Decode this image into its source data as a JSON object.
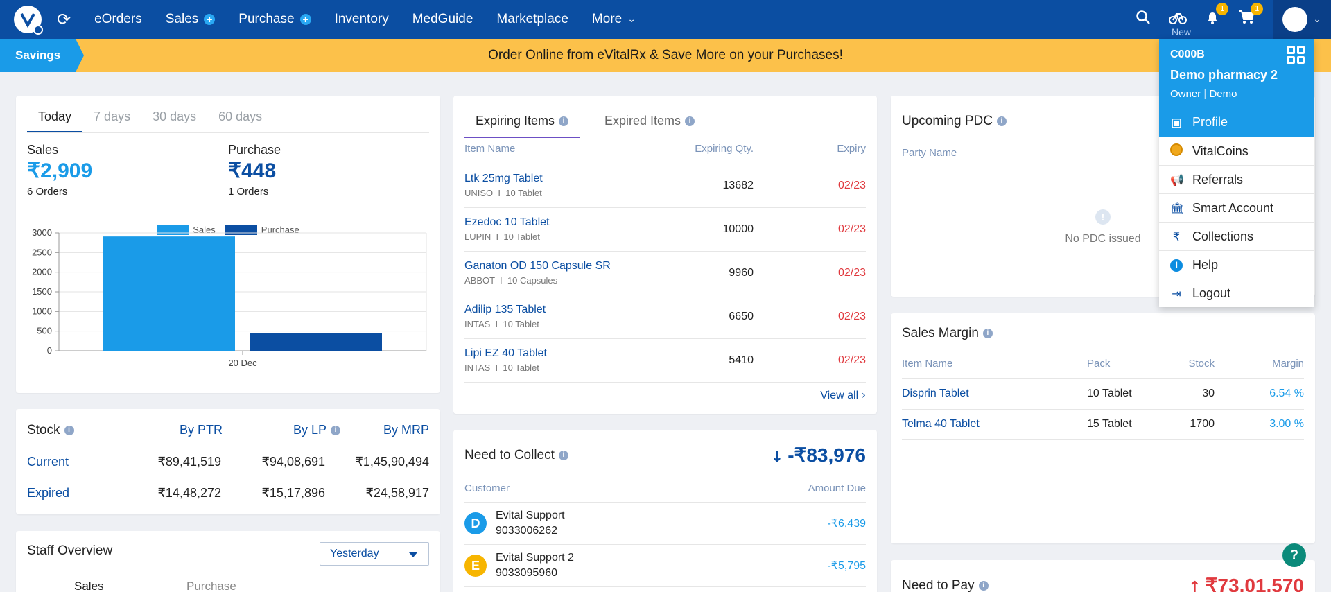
{
  "nav": {
    "items": [
      {
        "label": "eOrders"
      },
      {
        "label": "Sales"
      },
      {
        "label": "Purchase"
      },
      {
        "label": "Inventory"
      },
      {
        "label": "MedGuide"
      },
      {
        "label": "Marketplace"
      },
      {
        "label": "More"
      }
    ],
    "new_label": "New",
    "notif_count": "1",
    "cart_count": "1"
  },
  "banner": {
    "savings": "Savings",
    "text": "Order Online from eVitalRx & Save More on your Purchases!"
  },
  "sales_card": {
    "tabs": [
      "Today",
      "7 days",
      "30 days",
      "60 days"
    ],
    "sales_label": "Sales",
    "sales_value": "₹2,909",
    "sales_orders": "6 Orders",
    "purchase_label": "Purchase",
    "purchase_value": "₹448",
    "purchase_orders": "1 Orders"
  },
  "chart_data": {
    "type": "bar",
    "categories": [
      "20 Dec"
    ],
    "series": [
      {
        "name": "Sales",
        "values": [
          2909
        ],
        "color": "#1a9be8"
      },
      {
        "name": "Purchase",
        "values": [
          448
        ],
        "color": "#0b4ea2"
      }
    ],
    "yticks": [
      "3000",
      "2500",
      "2000",
      "1500",
      "1000",
      "500",
      "0"
    ],
    "ylim": [
      0,
      3000
    ],
    "grid": true,
    "legend_position": "top-center"
  },
  "stock": {
    "title": "Stock",
    "cols": [
      "By PTR",
      "By LP",
      "By MRP"
    ],
    "rows": [
      {
        "label": "Current",
        "values": [
          "₹89,41,519",
          "₹94,08,691",
          "₹1,45,90,494"
        ]
      },
      {
        "label": "Expired",
        "values": [
          "₹14,48,272",
          "₹15,17,896",
          "₹24,58,917"
        ]
      }
    ]
  },
  "staff": {
    "title": "Staff Overview",
    "select": "Yesterday",
    "col1": "Sales",
    "col2": "Purchase"
  },
  "expiring": {
    "tab_active": "Expiring Items",
    "tab_other": "Expired Items",
    "headers": [
      "Item Name",
      "Expiring Qty.",
      "Expiry"
    ],
    "rows": [
      {
        "name": "Ltk 25mg Tablet",
        "sub": "UNISO  I  10 Tablet",
        "qty": "13682",
        "expiry": "02/23"
      },
      {
        "name": "Ezedoc 10 Tablet",
        "sub": "LUPIN  I  10 Tablet",
        "qty": "10000",
        "expiry": "02/23"
      },
      {
        "name": "Ganaton OD 150 Capsule SR",
        "sub": "ABBOT  I  10 Capsules",
        "qty": "9960",
        "expiry": "02/23"
      },
      {
        "name": "Adilip 135 Tablet",
        "sub": "INTAS  I  10 Tablet",
        "qty": "6650",
        "expiry": "02/23"
      },
      {
        "name": "Lipi EZ 40 Tablet",
        "sub": "INTAS  I  10 Tablet",
        "qty": "5410",
        "expiry": "02/23"
      }
    ],
    "view_all": "View all"
  },
  "collect": {
    "title": "Need to Collect",
    "total": "-₹83,976",
    "headers": [
      "Customer",
      "Amount Due"
    ],
    "rows": [
      {
        "initial": "D",
        "name": "Evital Support",
        "phone": "9033006262",
        "amount": "-₹6,439",
        "color": "#1a9be8"
      },
      {
        "initial": "E",
        "name": "Evital Support 2",
        "phone": "9033095960",
        "amount": "-₹5,795",
        "color": "#f7b500"
      }
    ]
  },
  "pdc": {
    "title": "Upcoming PDC",
    "header": "Party Name",
    "empty": "No PDC issued"
  },
  "margin": {
    "title": "Sales Margin",
    "headers": [
      "Item Name",
      "Pack",
      "Stock",
      "Margin"
    ],
    "rows": [
      {
        "name": "Disprin Tablet",
        "pack": "10 Tablet",
        "stock": "30",
        "margin": "6.54 %"
      },
      {
        "name": "Telma 40 Tablet",
        "pack": "15 Tablet",
        "stock": "1700",
        "margin": "3.00 %"
      }
    ]
  },
  "pay": {
    "title": "Need to Pay",
    "total": "₹73,01,570"
  },
  "account": {
    "code": "C000B",
    "name": "Demo pharmacy 2",
    "role": "Owner",
    "user": "Demo",
    "menu": [
      "Profile",
      "VitalCoins",
      "Referrals",
      "Smart Account",
      "Collections",
      "Help",
      "Logout"
    ]
  }
}
